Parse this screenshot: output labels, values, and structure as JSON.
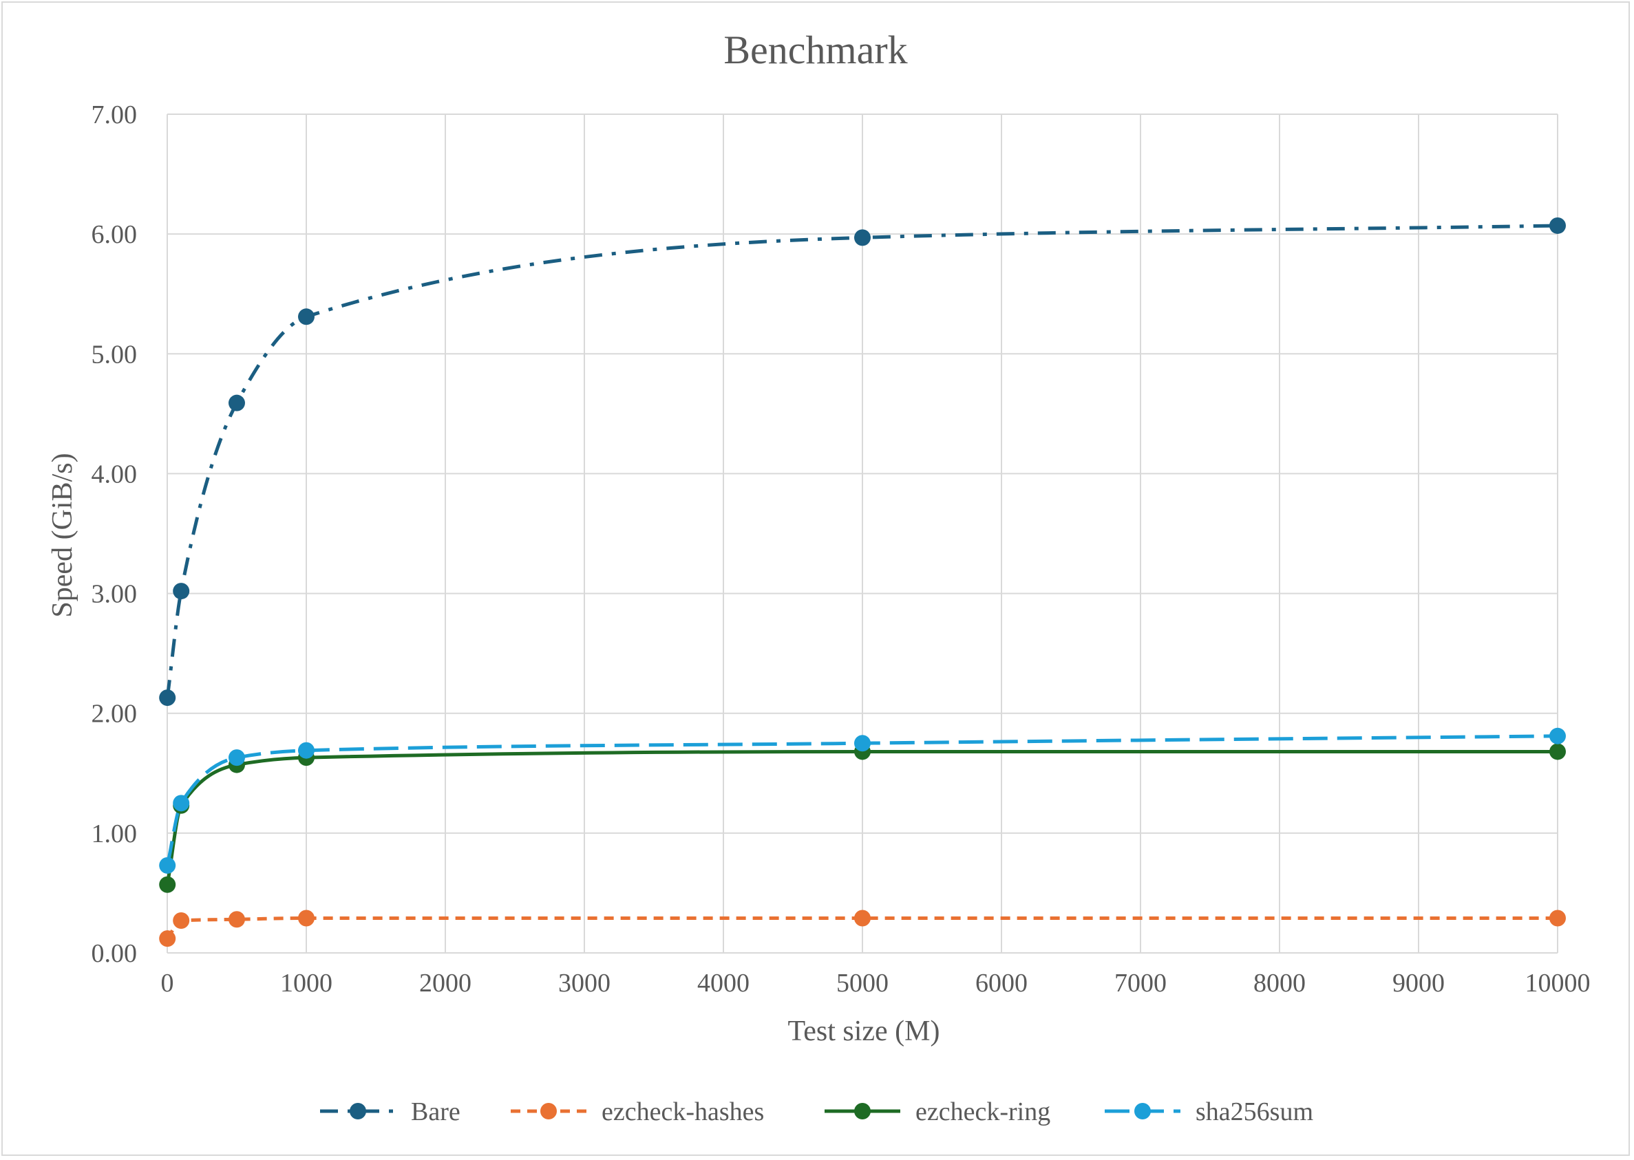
{
  "chart_data": {
    "type": "scatter",
    "title": "Benchmark",
    "xlabel": "Test size (M)",
    "ylabel": "Speed (GiB/s)",
    "xlim": [
      0,
      10000
    ],
    "ylim": [
      0,
      7
    ],
    "x_ticks": [
      "0",
      "1000",
      "2000",
      "3000",
      "4000",
      "5000",
      "6000",
      "7000",
      "8000",
      "9000",
      "10000"
    ],
    "y_ticks": [
      "0.00",
      "1.00",
      "2.00",
      "3.00",
      "4.00",
      "5.00",
      "6.00",
      "7.00"
    ],
    "grid": true,
    "legend_position": "bottom",
    "smooth_lines": true,
    "series": [
      {
        "name": "Bare",
        "color": "#1b5e82",
        "dash": "dash-dot",
        "points": [
          [
            1,
            2.13
          ],
          [
            100,
            3.02
          ],
          [
            500,
            4.59
          ],
          [
            1000,
            5.31
          ],
          [
            5000,
            5.97
          ],
          [
            10000,
            6.07
          ]
        ]
      },
      {
        "name": "ezcheck-hashes",
        "color": "#e97132",
        "dash": "short-dash",
        "points": [
          [
            1,
            0.12
          ],
          [
            100,
            0.27
          ],
          [
            500,
            0.28
          ],
          [
            1000,
            0.29
          ],
          [
            5000,
            0.29
          ],
          [
            10000,
            0.29
          ]
        ]
      },
      {
        "name": "ezcheck-ring",
        "color": "#1e6b24",
        "dash": "solid",
        "points": [
          [
            1,
            0.57
          ],
          [
            100,
            1.23
          ],
          [
            500,
            1.57
          ],
          [
            1000,
            1.63
          ],
          [
            5000,
            1.68
          ],
          [
            10000,
            1.68
          ]
        ]
      },
      {
        "name": "sha256sum",
        "color": "#1c9fd8",
        "dash": "long-dash",
        "points": [
          [
            1,
            0.73
          ],
          [
            100,
            1.25
          ],
          [
            500,
            1.63
          ],
          [
            1000,
            1.69
          ],
          [
            5000,
            1.75
          ],
          [
            10000,
            1.81
          ]
        ]
      }
    ]
  }
}
